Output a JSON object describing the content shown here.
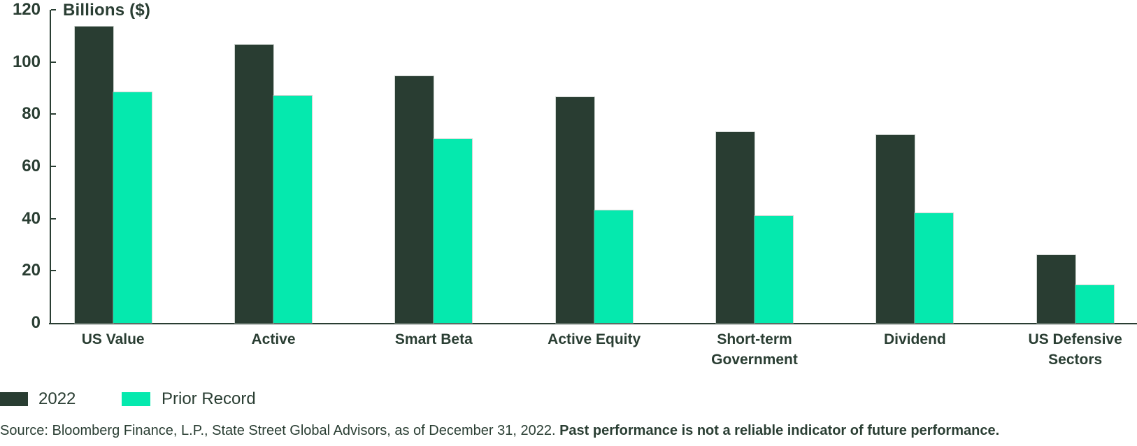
{
  "chart_data": {
    "type": "bar",
    "title": "Billions ($)",
    "ylabel": "Billions ($)",
    "xlabel": "",
    "ylim": [
      0,
      120
    ],
    "yticks": [
      0,
      20,
      40,
      60,
      80,
      100,
      120
    ],
    "grid": false,
    "legend_position": "bottom-left",
    "categories": [
      "US Value",
      "Active",
      "Smart Beta",
      "Active Equity",
      "Short-term Government",
      "Dividend",
      "US Defensive Sectors"
    ],
    "series": [
      {
        "name": "2022",
        "color": "#293D32",
        "values": [
          113.5,
          106.5,
          94.5,
          86.5,
          73,
          72,
          26
        ]
      },
      {
        "name": "Prior Record",
        "color": "#05E9AE",
        "values": [
          88.5,
          87,
          70.5,
          43,
          41,
          42,
          14.5
        ]
      }
    ]
  },
  "legend": {
    "items": [
      {
        "label": "2022",
        "color": "#293D32"
      },
      {
        "label": "Prior Record",
        "color": "#05E9AE"
      }
    ]
  },
  "source": {
    "regular": "Source: Bloomberg Finance, L.P., State Street Global Advisors, as of December 31, 2022. ",
    "bold": "Past performance is not a reliable indicator of future performance."
  },
  "colors": {
    "series_2022": "#293D32",
    "series_prior_record": "#05E9AE",
    "text": "#2A3E33",
    "background": "#ffffff"
  }
}
